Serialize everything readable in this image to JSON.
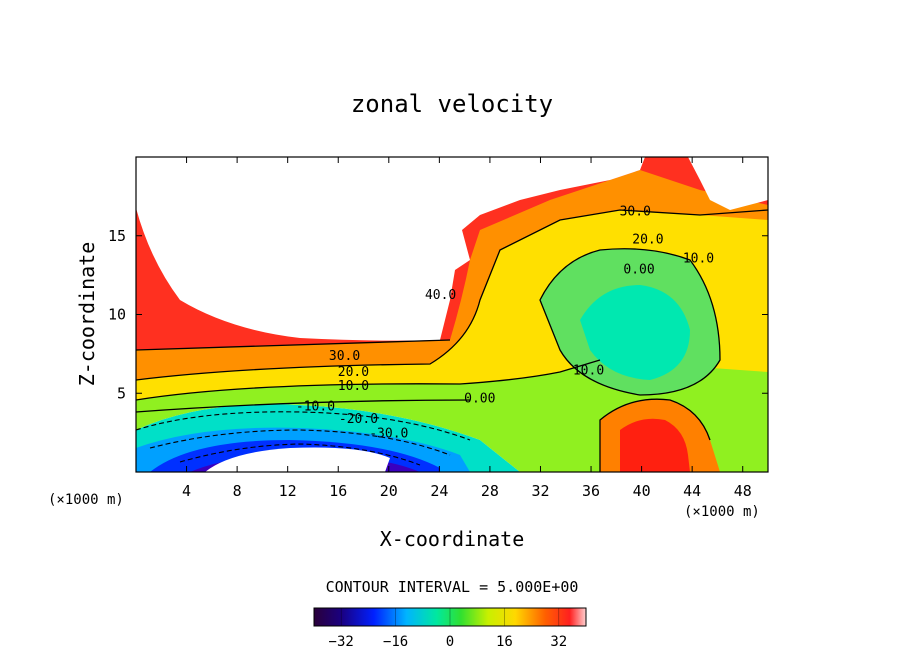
{
  "chart_data": {
    "type": "heatmap",
    "title": "zonal velocity",
    "xlabel": "X-coordinate",
    "ylabel": "Z-coordinate",
    "x_unit_note": "(×1000 m)",
    "z_unit_note": "(×1000 m)",
    "xlim": [
      0,
      50
    ],
    "ylim": [
      0,
      20
    ],
    "x_ticks": [
      4,
      8,
      12,
      16,
      20,
      24,
      28,
      32,
      36,
      40,
      44,
      48
    ],
    "y_ticks": [
      5,
      10,
      15
    ],
    "contour_interval_text": "CONTOUR INTERVAL = 5.000E+00",
    "contour_labels": [
      {
        "text": "30.0",
        "x": 16.5,
        "z": 7.1
      },
      {
        "text": "20.0",
        "x": 17.2,
        "z": 6.1
      },
      {
        "text": "10.0",
        "x": 17.2,
        "z": 5.2
      },
      {
        "text": "40.0",
        "x": 24.1,
        "z": 11.0
      },
      {
        "text": "0.00",
        "x": 27.2,
        "z": 4.4
      },
      {
        "text": "-10.0",
        "x": 14.2,
        "z": 3.9
      },
      {
        "text": "-20.0",
        "x": 17.6,
        "z": 3.1
      },
      {
        "text": "-30.0",
        "x": 20.0,
        "z": 2.2
      },
      {
        "text": "30.0",
        "x": 39.5,
        "z": 16.3
      },
      {
        "text": "20.0",
        "x": 40.5,
        "z": 14.5
      },
      {
        "text": "10.0",
        "x": 44.5,
        "z": 13.3
      },
      {
        "text": "0.00",
        "x": 39.8,
        "z": 12.6
      },
      {
        "text": "10.0",
        "x": 35.8,
        "z": 6.2
      }
    ],
    "colorbar": {
      "min": -40,
      "max": 40,
      "ticks": [
        -32,
        -16,
        0,
        16,
        32
      ],
      "tick_labels": [
        "−32",
        "−16",
        "0",
        "16",
        "32"
      ]
    },
    "notes": "Filled contour plot of zonal velocity in the X-Z plane; blank (white) regions are masked."
  }
}
